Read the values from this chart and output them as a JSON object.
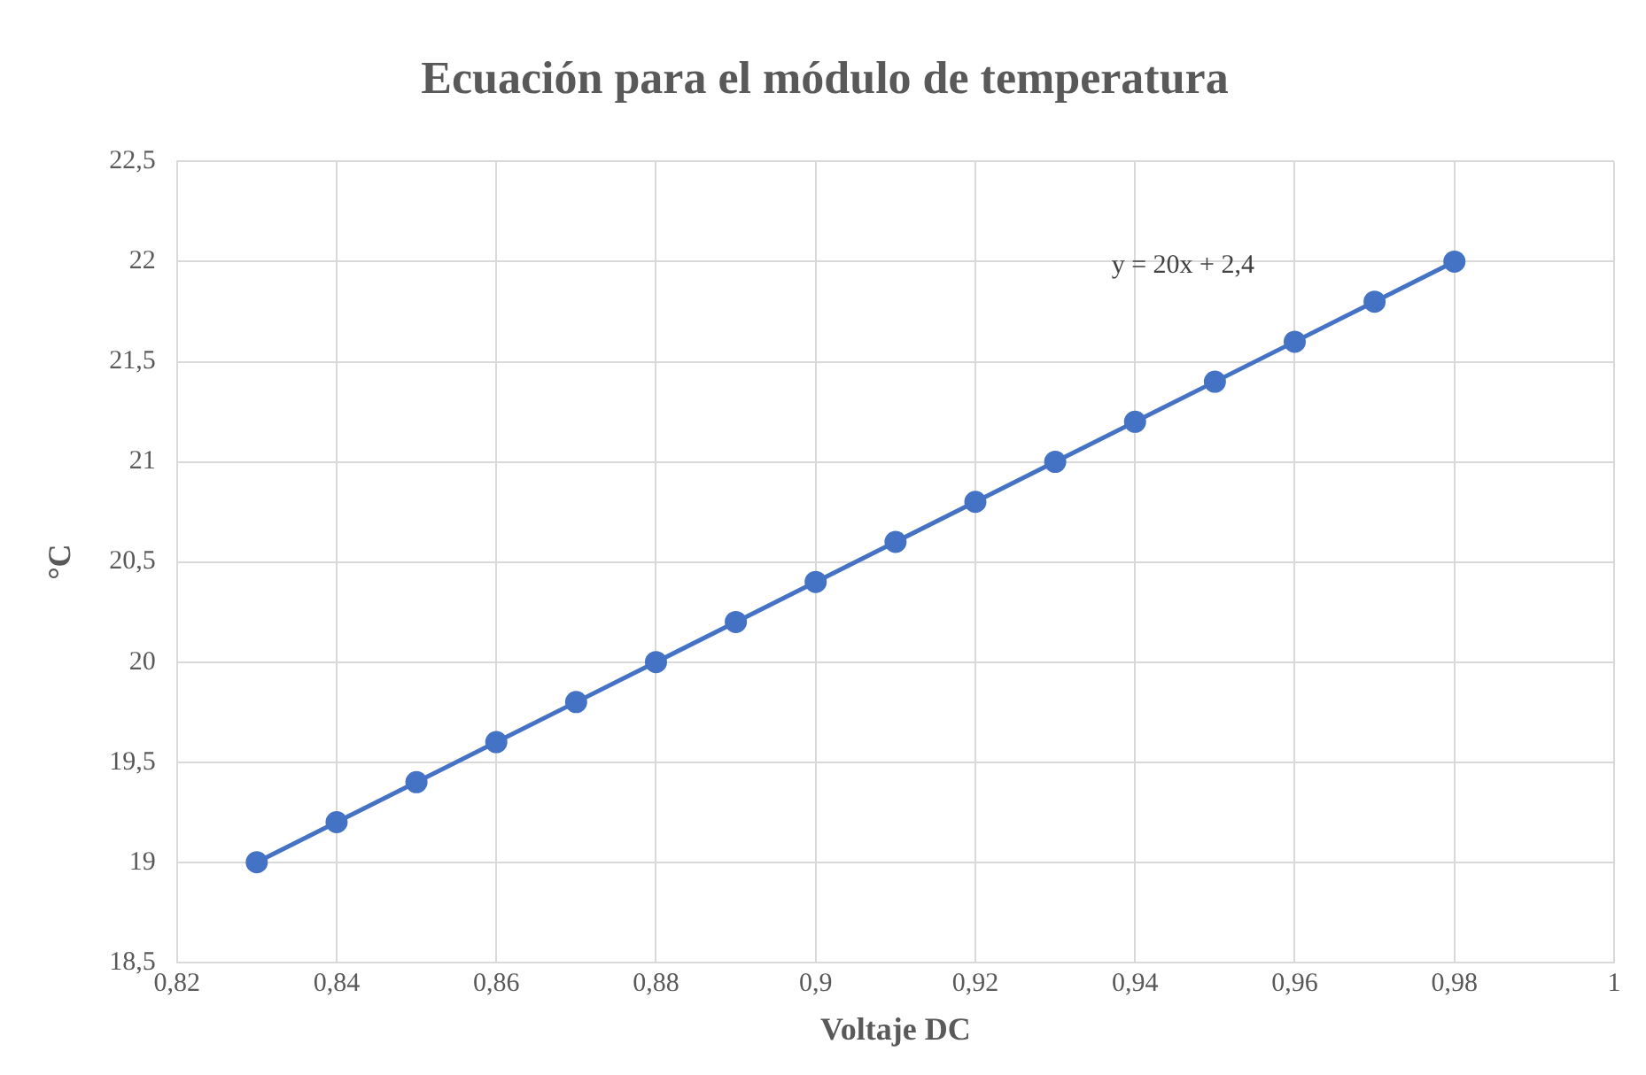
{
  "chart_data": {
    "type": "line",
    "title": "Ecuación para el módulo de temperatura",
    "xlabel": "Voltaje DC",
    "ylabel": "°C",
    "x": [
      0.83,
      0.84,
      0.85,
      0.86,
      0.87,
      0.88,
      0.89,
      0.9,
      0.91,
      0.92,
      0.93,
      0.94,
      0.95,
      0.96,
      0.97,
      0.98
    ],
    "series": [
      {
        "color": "#4472c4",
        "values": [
          19.0,
          19.2,
          19.4,
          19.6,
          19.8,
          20.0,
          20.2,
          20.4,
          20.6,
          20.8,
          21.0,
          21.2,
          21.4,
          21.6,
          21.8,
          22.0
        ]
      }
    ],
    "xlim": [
      0.82,
      1
    ],
    "xticks": [
      {
        "value": 0.82,
        "label": "0,82"
      },
      {
        "value": 0.84,
        "label": "0,84"
      },
      {
        "value": 0.86,
        "label": "0,86"
      },
      {
        "value": 0.88,
        "label": "0,88"
      },
      {
        "value": 0.9,
        "label": "0,9"
      },
      {
        "value": 0.92,
        "label": "0,92"
      },
      {
        "value": 0.94,
        "label": "0,94"
      },
      {
        "value": 0.96,
        "label": "0,96"
      },
      {
        "value": 0.98,
        "label": "0,98"
      },
      1
    ],
    "ylim": [
      18.5,
      22.5
    ],
    "yticks": [
      {
        "value": 18.5,
        "label": "18,5"
      },
      19,
      {
        "value": 19.5,
        "label": "19,5"
      },
      20,
      {
        "value": 20.5,
        "label": "20,5"
      },
      21,
      {
        "value": 21.5,
        "label": "21,5"
      },
      22,
      {
        "value": 22.5,
        "label": "22,5"
      }
    ],
    "annotations": [
      "y = 20x + 2,4"
    ],
    "grid": true,
    "legend": false,
    "marker": "circle",
    "line_style": "solid"
  }
}
